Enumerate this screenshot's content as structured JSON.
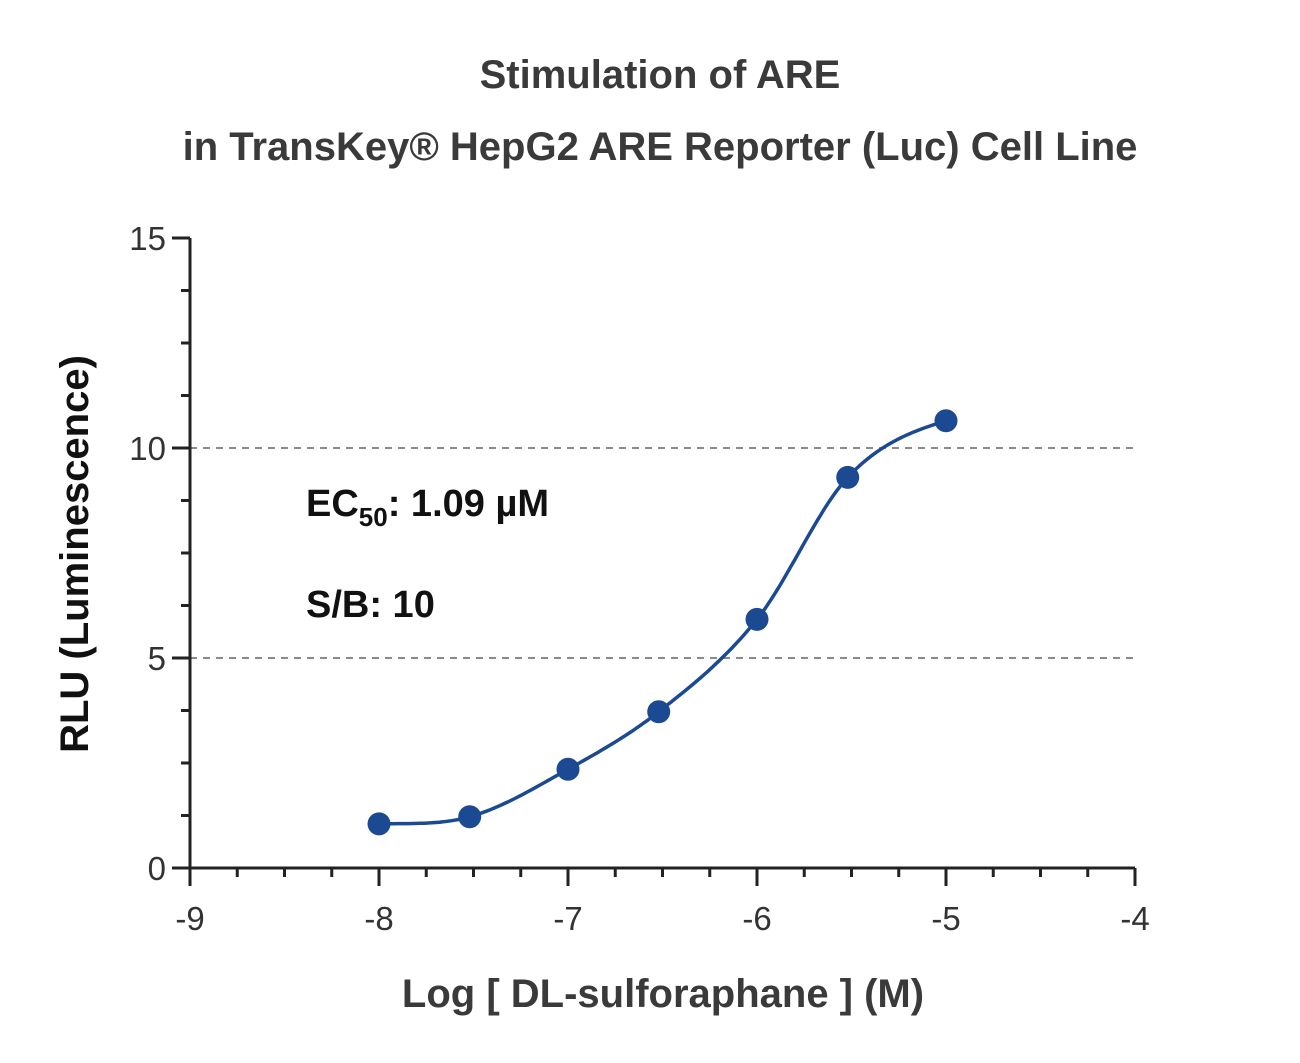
{
  "chart_data": {
    "type": "scatter",
    "title_line1": "Stimulation of  ARE",
    "title_line2": "in TransKey® HepG2 ARE Reporter (Luc) Cell Line",
    "xlabel": "Log [ DL-sulforaphane ]  (M)",
    "ylabel": "RLU (Luminescence)",
    "xlim": [
      -9,
      -4
    ],
    "ylim": [
      0,
      15
    ],
    "x_ticks": [
      -9,
      -8,
      -7,
      -6,
      -5,
      -4
    ],
    "y_ticks": [
      0,
      5,
      10,
      15
    ],
    "y_gridlines": [
      5,
      10
    ],
    "grid": "dashed horizontal at 5 and 10",
    "series": [
      {
        "x": [
          -8,
          -7.52,
          -7,
          -6.52,
          -6,
          -5.52,
          -5
        ],
        "y": [
          1.05,
          1.22,
          2.35,
          3.72,
          5.92,
          9.3,
          10.65
        ],
        "color": "#1b4a93",
        "fit": "four-parameter logistic curve"
      }
    ],
    "annotations": {
      "ec50_prefix": "EC",
      "ec50_sub": "50",
      "ec50_value": ": 1.09 µM",
      "sb": "S/B: 10"
    }
  }
}
